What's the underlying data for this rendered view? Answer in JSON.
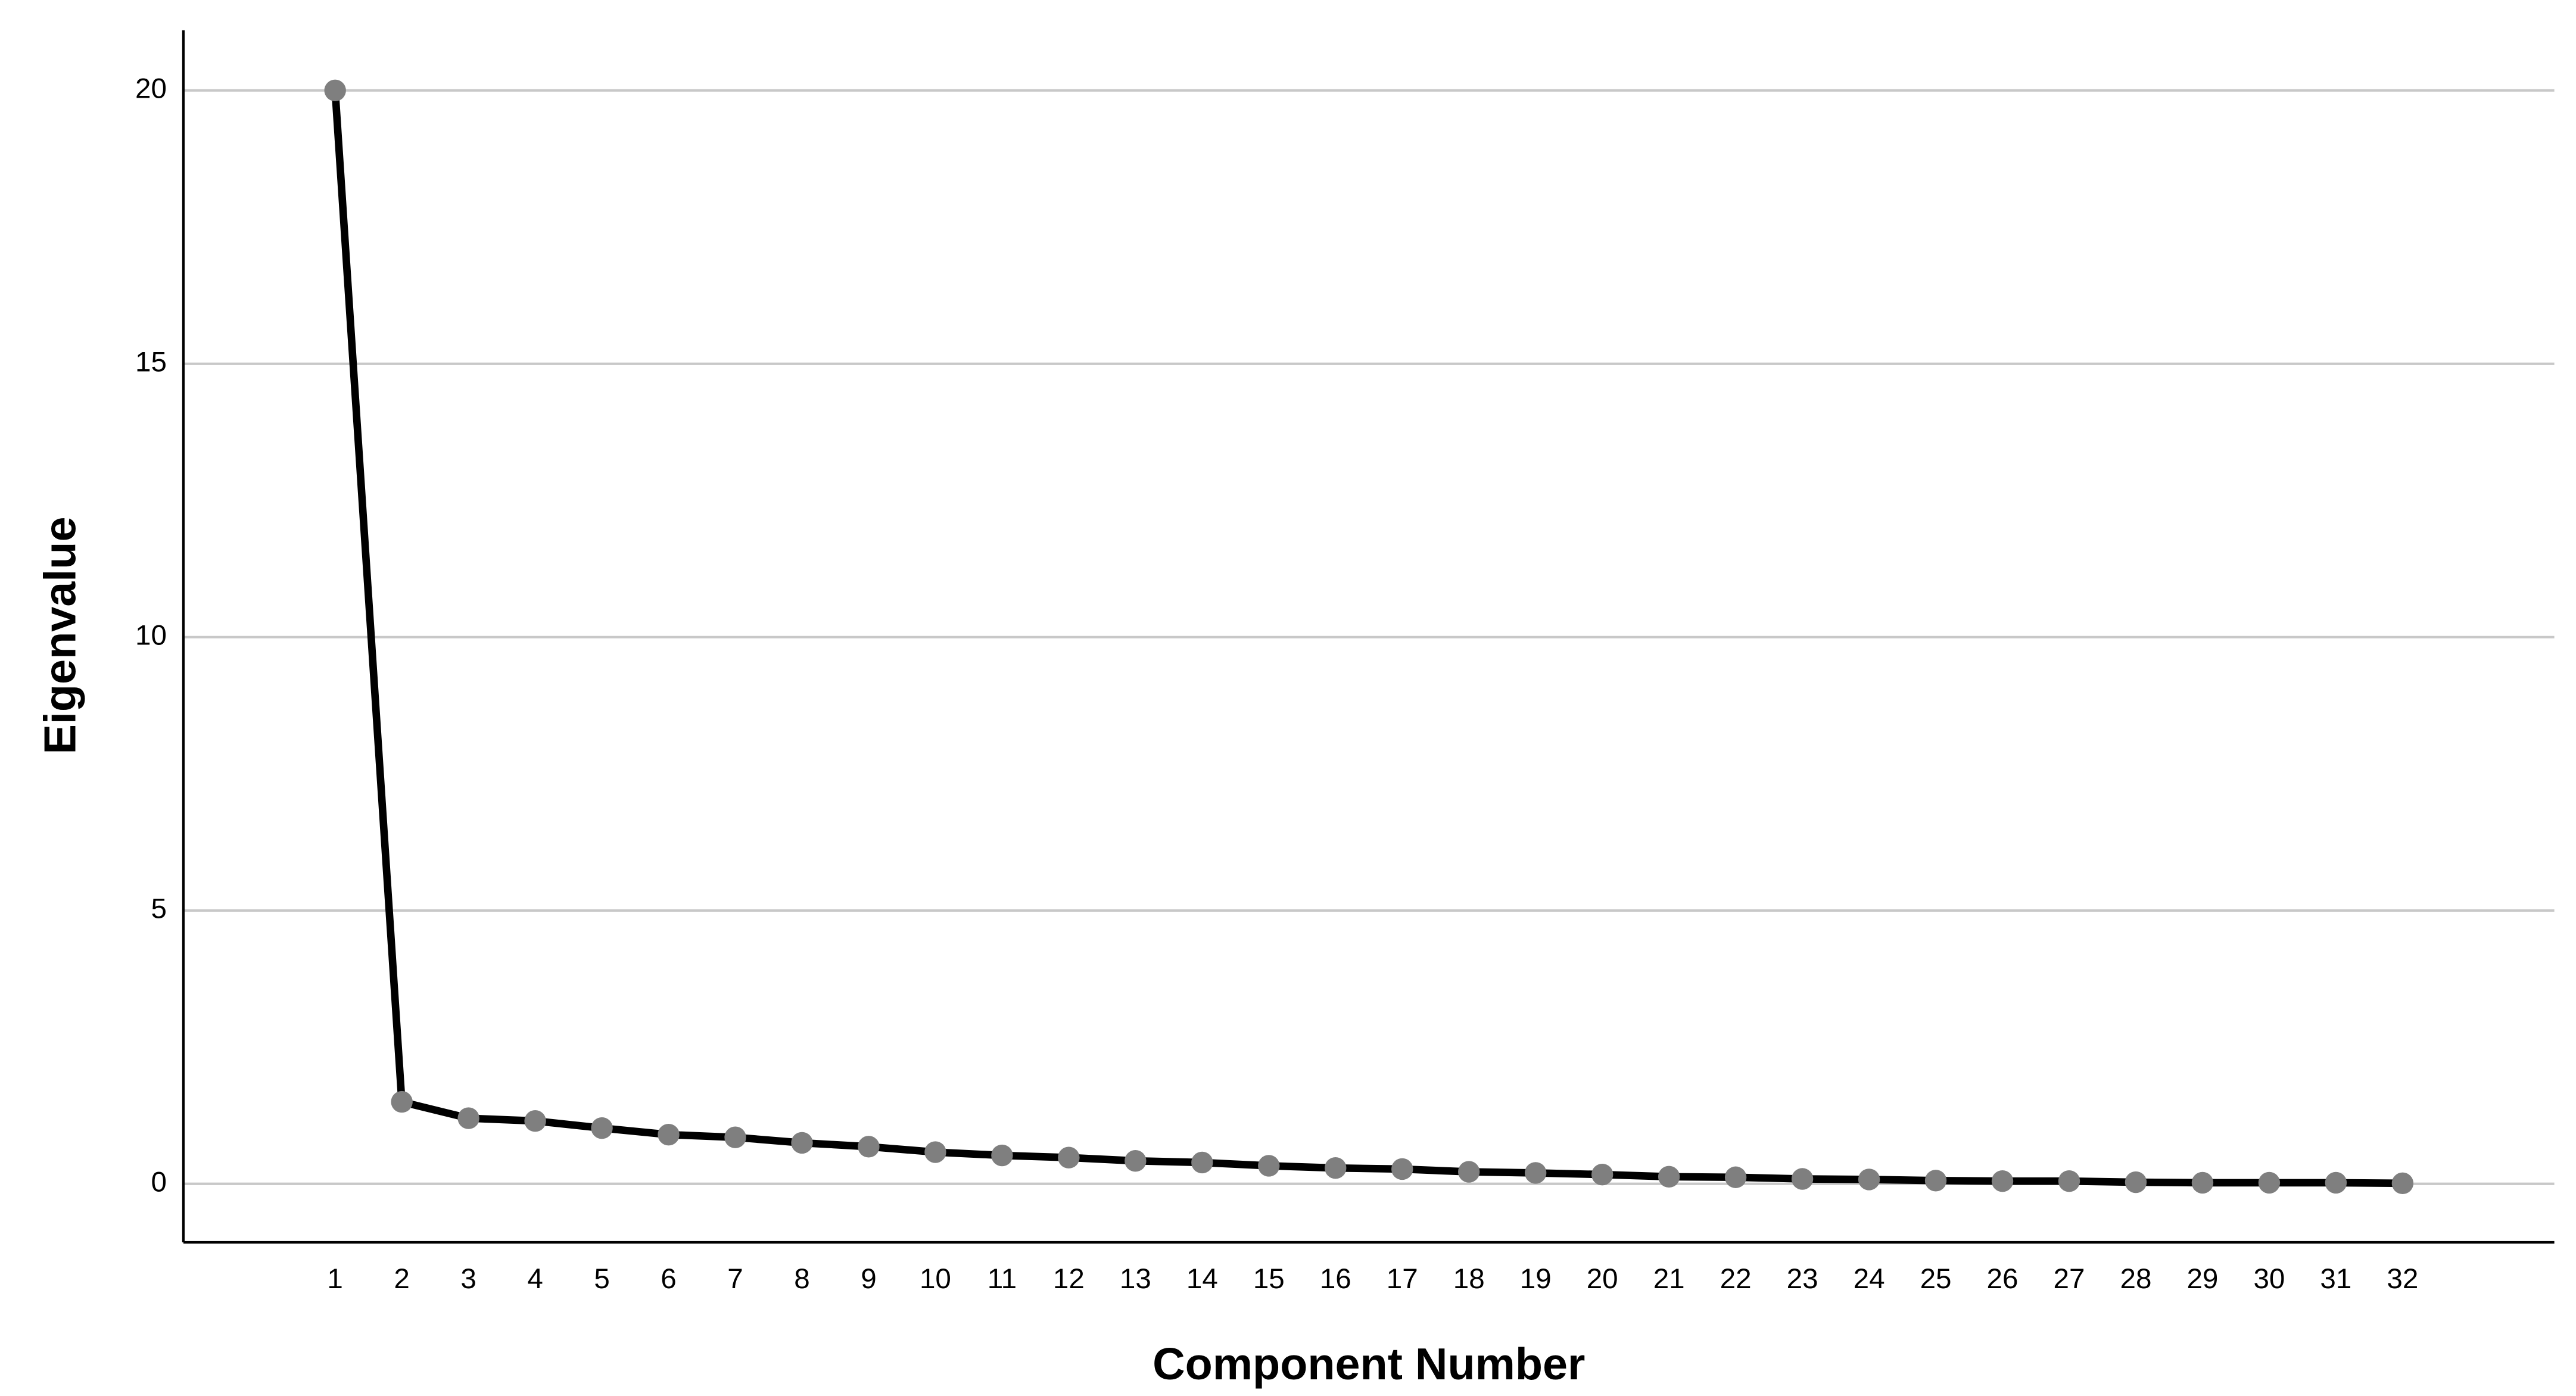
{
  "chart_data": {
    "type": "line",
    "xlabel": "Component Number",
    "ylabel": "Eigenvalue",
    "x": [
      1,
      2,
      3,
      4,
      5,
      6,
      7,
      8,
      9,
      10,
      11,
      12,
      13,
      14,
      15,
      16,
      17,
      18,
      19,
      20,
      21,
      22,
      23,
      24,
      25,
      26,
      27,
      28,
      29,
      30,
      31,
      32
    ],
    "series": [
      {
        "color": "#000000",
        "marker_color": "#7f7f7f",
        "values": [
          20,
          1.5,
          1.2,
          1.15,
          1.02,
          0.9,
          0.85,
          0.75,
          0.68,
          0.58,
          0.52,
          0.48,
          0.42,
          0.39,
          0.33,
          0.29,
          0.27,
          0.22,
          0.2,
          0.17,
          0.13,
          0.12,
          0.09,
          0.08,
          0.06,
          0.05,
          0.05,
          0.03,
          0.02,
          0.02,
          0.02,
          0.01
        ]
      }
    ],
    "xlim": [
      -1.275,
      34.275
    ],
    "xticks": [
      1,
      2,
      3,
      4,
      5,
      6,
      7,
      8,
      9,
      10,
      11,
      12,
      13,
      14,
      15,
      16,
      17,
      18,
      19,
      20,
      21,
      22,
      23,
      24,
      25,
      26,
      27,
      28,
      29,
      30,
      31,
      32
    ],
    "ylim": [
      -1.07,
      21.1
    ],
    "yticks": [
      0,
      5,
      10,
      15,
      20
    ],
    "grid": true
  }
}
